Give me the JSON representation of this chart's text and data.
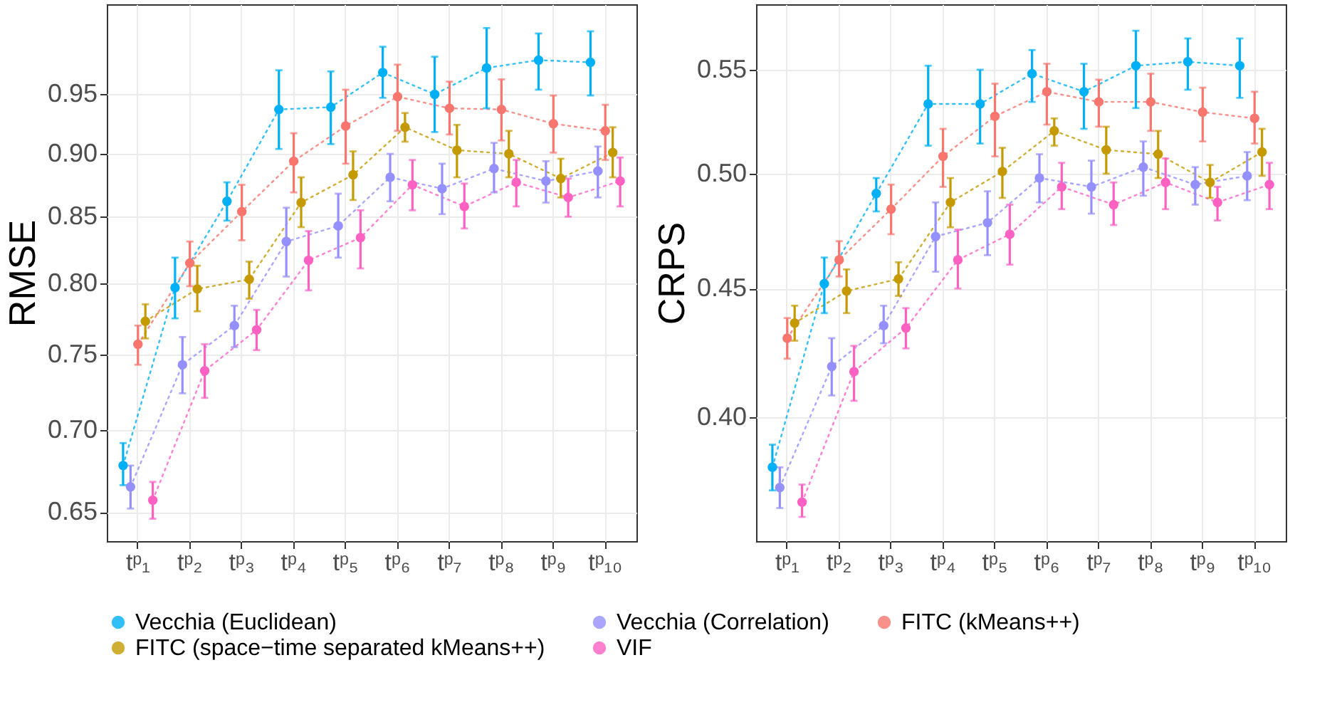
{
  "chart_data": [
    {
      "type": "line",
      "ylabel": "RMSE",
      "categories": [
        "tᵖ₁",
        "tᵖ₂",
        "tᵖ₃",
        "tᵖ₄",
        "tᵖ₅",
        "tᵖ₆",
        "tᵖ₇",
        "tᵖ₈",
        "tᵖ₉",
        "tᵖ₁₀"
      ],
      "log": "y",
      "ylim": [
        0.633,
        1.031
      ],
      "yticks": [
        0.65,
        {
          "value": 0.7,
          "label": "0.70"
        },
        0.75,
        {
          "value": 0.8,
          "label": "0.80"
        },
        0.85,
        {
          "value": 0.9,
          "label": "0.90"
        },
        0.95
      ],
      "grid": true,
      "legend": "bottom",
      "marker": "circle",
      "line_style": "dotted",
      "series": [
        {
          "name": "Vecchia (Euclidean)",
          "color": "#00b0f6",
          "values": [
            0.678,
            0.797,
            0.862,
            0.937,
            0.939,
            0.969,
            0.95,
            0.973,
            0.98,
            0.978
          ],
          "errors": [
            [
              0.666,
              0.692
            ],
            [
              0.775,
              0.819
            ],
            [
              0.847,
              0.877
            ],
            [
              0.904,
              0.971
            ],
            [
              0.908,
              0.97
            ],
            [
              0.947,
              0.992
            ],
            [
              0.918,
              0.983
            ],
            [
              0.938,
              1.009
            ],
            [
              0.954,
              1.004
            ],
            [
              0.949,
              1.006
            ]
          ]
        },
        {
          "name": "Vecchia (Correlation)",
          "color": "#9590ff",
          "values": [
            0.665,
            0.743,
            0.77,
            0.831,
            0.843,
            0.881,
            0.872,
            0.888,
            0.878,
            0.886
          ],
          "errors": [
            [
              0.652,
              0.678
            ],
            [
              0.724,
              0.762
            ],
            [
              0.755,
              0.784
            ],
            [
              0.805,
              0.857
            ],
            [
              0.819,
              0.868
            ],
            [
              0.862,
              0.9
            ],
            [
              0.852,
              0.892
            ],
            [
              0.869,
              0.909
            ],
            [
              0.861,
              0.894
            ],
            [
              0.865,
              0.906
            ]
          ]
        },
        {
          "name": "FITC (kMeans++)",
          "color": "#f8766d",
          "values": [
            0.757,
            0.815,
            0.854,
            0.894,
            0.923,
            0.948,
            0.938,
            0.937,
            0.925,
            0.919
          ],
          "errors": [
            [
              0.743,
              0.77
            ],
            [
              0.798,
              0.831
            ],
            [
              0.832,
              0.875
            ],
            [
              0.869,
              0.917
            ],
            [
              0.892,
              0.954
            ],
            [
              0.919,
              0.976
            ],
            [
              0.916,
              0.961
            ],
            [
              0.911,
              0.963
            ],
            [
              0.901,
              0.949
            ],
            [
              0.895,
              0.941
            ]
          ]
        },
        {
          "name": "FITC (space−time separated kMeans++)",
          "color": "#c49a00",
          "values": [
            0.773,
            0.796,
            0.803,
            0.861,
            0.883,
            0.922,
            0.903,
            0.9,
            0.88,
            0.901
          ],
          "errors": [
            [
              0.761,
              0.785
            ],
            [
              0.78,
              0.813
            ],
            [
              0.789,
              0.816
            ],
            [
              0.842,
              0.881
            ],
            [
              0.863,
              0.902
            ],
            [
              0.91,
              0.934
            ],
            [
              0.881,
              0.924
            ],
            [
              0.881,
              0.919
            ],
            [
              0.865,
              0.896
            ],
            [
              0.881,
              0.922
            ]
          ]
        },
        {
          "name": "VIF",
          "color": "#ff61c3",
          "values": [
            0.657,
            0.739,
            0.767,
            0.817,
            0.834,
            0.875,
            0.858,
            0.877,
            0.865,
            0.878
          ],
          "errors": [
            [
              0.646,
              0.668
            ],
            [
              0.721,
              0.757
            ],
            [
              0.753,
              0.781
            ],
            [
              0.795,
              0.839
            ],
            [
              0.811,
              0.855
            ],
            [
              0.855,
              0.895
            ],
            [
              0.841,
              0.876
            ],
            [
              0.858,
              0.895
            ],
            [
              0.85,
              0.88
            ],
            [
              0.858,
              0.897
            ]
          ]
        }
      ]
    },
    {
      "type": "line",
      "ylabel": "CRPS",
      "categories": [
        "tᵖ₁",
        "tᵖ₂",
        "tᵖ₃",
        "tᵖ₄",
        "tᵖ₅",
        "tᵖ₆",
        "tᵖ₇",
        "tᵖ₈",
        "tᵖ₉",
        "tᵖ₁₀"
      ],
      "log": "y",
      "ylim": [
        0.357,
        0.584
      ],
      "yticks": [
        {
          "value": 0.4,
          "label": "0.40"
        },
        0.45,
        {
          "value": 0.5,
          "label": "0.50"
        },
        0.55
      ],
      "grid": true,
      "legend": "bottom",
      "marker": "circle",
      "line_style": "dotted",
      "series": [
        {
          "name": "Vecchia (Euclidean)",
          "color": "#00b0f6",
          "values": [
            0.382,
            0.452,
            0.491,
            0.533,
            0.533,
            0.548,
            0.539,
            0.552,
            0.554,
            0.552
          ],
          "errors": [
            [
              0.374,
              0.39
            ],
            [
              0.44,
              0.463
            ],
            [
              0.483,
              0.498
            ],
            [
              0.513,
              0.552
            ],
            [
              0.514,
              0.55
            ],
            [
              0.534,
              0.56
            ],
            [
              0.521,
              0.553
            ],
            [
              0.531,
              0.57
            ],
            [
              0.54,
              0.566
            ],
            [
              0.536,
              0.566
            ]
          ]
        },
        {
          "name": "Vecchia (Correlation)",
          "color": "#9590ff",
          "values": [
            0.375,
            0.419,
            0.435,
            0.472,
            0.478,
            0.498,
            0.494,
            0.503,
            0.495,
            0.499
          ],
          "errors": [
            [
              0.368,
              0.382
            ],
            [
              0.408,
              0.43
            ],
            [
              0.428,
              0.443
            ],
            [
              0.457,
              0.487
            ],
            [
              0.464,
              0.492
            ],
            [
              0.487,
              0.509
            ],
            [
              0.482,
              0.506
            ],
            [
              0.49,
              0.515
            ],
            [
              0.486,
              0.503
            ],
            [
              0.488,
              0.51
            ]
          ]
        },
        {
          "name": "FITC (kMeans++)",
          "color": "#f8766d",
          "values": [
            0.43,
            0.462,
            0.484,
            0.508,
            0.527,
            0.539,
            0.534,
            0.534,
            0.529,
            0.526
          ],
          "errors": [
            [
              0.422,
              0.438
            ],
            [
              0.455,
              0.47
            ],
            [
              0.473,
              0.495
            ],
            [
              0.494,
              0.521
            ],
            [
              0.508,
              0.543
            ],
            [
              0.523,
              0.553
            ],
            [
              0.522,
              0.545
            ],
            [
              0.52,
              0.548
            ],
            [
              0.515,
              0.541
            ],
            [
              0.514,
              0.539
            ]
          ]
        },
        {
          "name": "FITC (space−time separated kMeans++)",
          "color": "#c49a00",
          "values": [
            0.436,
            0.449,
            0.454,
            0.487,
            0.501,
            0.52,
            0.511,
            0.509,
            0.496,
            0.51
          ],
          "errors": [
            [
              0.429,
              0.443
            ],
            [
              0.44,
              0.458
            ],
            [
              0.447,
              0.461
            ],
            [
              0.476,
              0.498
            ],
            [
              0.489,
              0.512
            ],
            [
              0.513,
              0.526
            ],
            [
              0.5,
              0.522
            ],
            [
              0.498,
              0.52
            ],
            [
              0.489,
              0.504
            ],
            [
              0.499,
              0.521
            ]
          ]
        },
        {
          "name": "VIF",
          "color": "#ff61c3",
          "values": [
            0.37,
            0.417,
            0.434,
            0.462,
            0.473,
            0.494,
            0.486,
            0.496,
            0.487,
            0.495
          ],
          "errors": [
            [
              0.365,
              0.376
            ],
            [
              0.406,
              0.427
            ],
            [
              0.426,
              0.442
            ],
            [
              0.45,
              0.475
            ],
            [
              0.46,
              0.486
            ],
            [
              0.484,
              0.505
            ],
            [
              0.477,
              0.496
            ],
            [
              0.484,
              0.507
            ],
            [
              0.479,
              0.494
            ],
            [
              0.484,
              0.505
            ]
          ]
        }
      ]
    }
  ]
}
